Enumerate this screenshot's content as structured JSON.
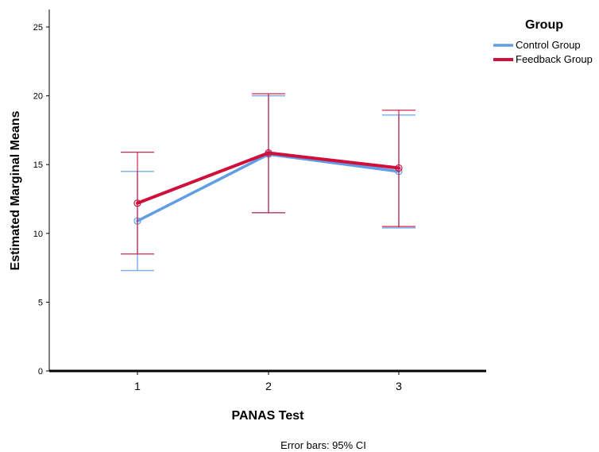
{
  "chart_data": {
    "type": "line",
    "title": "",
    "xlabel": "PANAS Test",
    "ylabel": "Estimated Marginal Means",
    "x": [
      "1",
      "2",
      "3"
    ],
    "ylim": [
      0,
      25
    ],
    "yticks": [
      "0",
      "5",
      "10",
      "15",
      "20",
      "25"
    ],
    "grid": false,
    "legend": {
      "title": "Group",
      "position": "top-right"
    },
    "footnote": "Error bars: 95% CI",
    "series": [
      {
        "name": "Control Group",
        "color": "#5f9de6",
        "values": [
          10.9,
          15.75,
          14.5
        ],
        "ci_lower": [
          7.3,
          11.5,
          10.4
        ],
        "ci_upper": [
          14.5,
          20.0,
          18.6
        ]
      },
      {
        "name": "Feedback Group",
        "color": "#d0103a",
        "values": [
          12.2,
          15.85,
          14.75
        ],
        "ci_lower": [
          8.5,
          11.5,
          10.5
        ],
        "ci_upper": [
          15.9,
          20.15,
          18.95
        ]
      }
    ]
  }
}
